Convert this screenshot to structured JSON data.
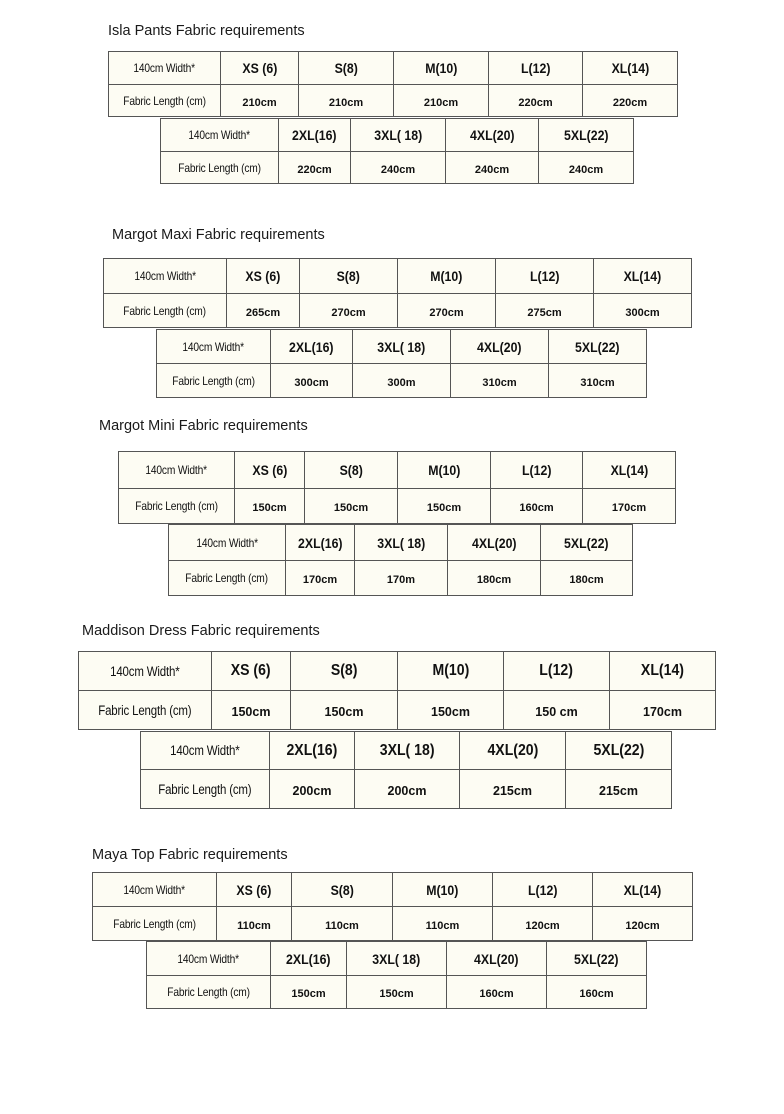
{
  "sections": [
    {
      "title": "Isla Pants Fabric requirements",
      "tables": [
        {
          "width_label": "140cm Width*",
          "length_label": "Fabric Length (cm)",
          "sizes": [
            "XS (6)",
            "S(8)",
            "M(10)",
            "L(12)",
            "XL(14)"
          ],
          "lengths": [
            "210cm",
            "210cm",
            "210cm",
            "220cm",
            "220cm"
          ]
        },
        {
          "width_label": "140cm Width*",
          "length_label": "Fabric Length (cm)",
          "sizes": [
            "2XL(16)",
            "3XL( 18)",
            "4XL(20)",
            "5XL(22)"
          ],
          "lengths": [
            "220cm",
            "240cm",
            "240cm",
            "240cm"
          ]
        }
      ]
    },
    {
      "title": "Margot Maxi Fabric requirements",
      "tables": [
        {
          "width_label": "140cm Width*",
          "length_label": "Fabric Length (cm)",
          "sizes": [
            "XS (6)",
            "S(8)",
            "M(10)",
            "L(12)",
            "XL(14)"
          ],
          "lengths": [
            "265cm",
            "270cm",
            "270cm",
            "275cm",
            "300cm"
          ]
        },
        {
          "width_label": "140cm Width*",
          "length_label": "Fabric Length (cm)",
          "sizes": [
            "2XL(16)",
            "3XL( 18)",
            "4XL(20)",
            "5XL(22)"
          ],
          "lengths": [
            "300cm",
            "300m",
            "310cm",
            "310cm"
          ]
        }
      ]
    },
    {
      "title": "Margot Mini Fabric requirements",
      "tables": [
        {
          "width_label": "140cm Width*",
          "length_label": "Fabric Length (cm)",
          "sizes": [
            "XS (6)",
            "S(8)",
            "M(10)",
            "L(12)",
            "XL(14)"
          ],
          "lengths": [
            "150cm",
            "150cm",
            "150cm",
            "160cm",
            "170cm"
          ]
        },
        {
          "width_label": "140cm Width*",
          "length_label": "Fabric Length (cm)",
          "sizes": [
            "2XL(16)",
            "3XL( 18)",
            "4XL(20)",
            "5XL(22)"
          ],
          "lengths": [
            "170cm",
            "170m",
            "180cm",
            "180cm"
          ]
        }
      ]
    },
    {
      "title": "Maddison Dress Fabric requirements",
      "tables": [
        {
          "width_label": "140cm Width*",
          "length_label": "Fabric Length (cm)",
          "sizes": [
            "XS (6)",
            "S(8)",
            "M(10)",
            "L(12)",
            "XL(14)"
          ],
          "lengths": [
            "150cm",
            "150cm",
            "150cm",
            "150 cm",
            "170cm"
          ]
        },
        {
          "width_label": "140cm Width*",
          "length_label": "Fabric Length (cm)",
          "sizes": [
            "2XL(16)",
            "3XL( 18)",
            "4XL(20)",
            "5XL(22)"
          ],
          "lengths": [
            "200cm",
            "200cm",
            "215cm",
            "215cm"
          ]
        }
      ]
    },
    {
      "title": "Maya Top Fabric requirements",
      "tables": [
        {
          "width_label": "140cm Width*",
          "length_label": "Fabric Length (cm)",
          "sizes": [
            "XS (6)",
            "S(8)",
            "M(10)",
            "L(12)",
            "XL(14)"
          ],
          "lengths": [
            "110cm",
            "110cm",
            "110cm",
            "120cm",
            "120cm"
          ]
        },
        {
          "width_label": "140cm Width*",
          "length_label": "Fabric Length (cm)",
          "sizes": [
            "2XL(16)",
            "3XL( 18)",
            "4XL(20)",
            "5XL(22)"
          ],
          "lengths": [
            "150cm",
            "150cm",
            "160cm",
            "160cm"
          ]
        }
      ]
    }
  ]
}
